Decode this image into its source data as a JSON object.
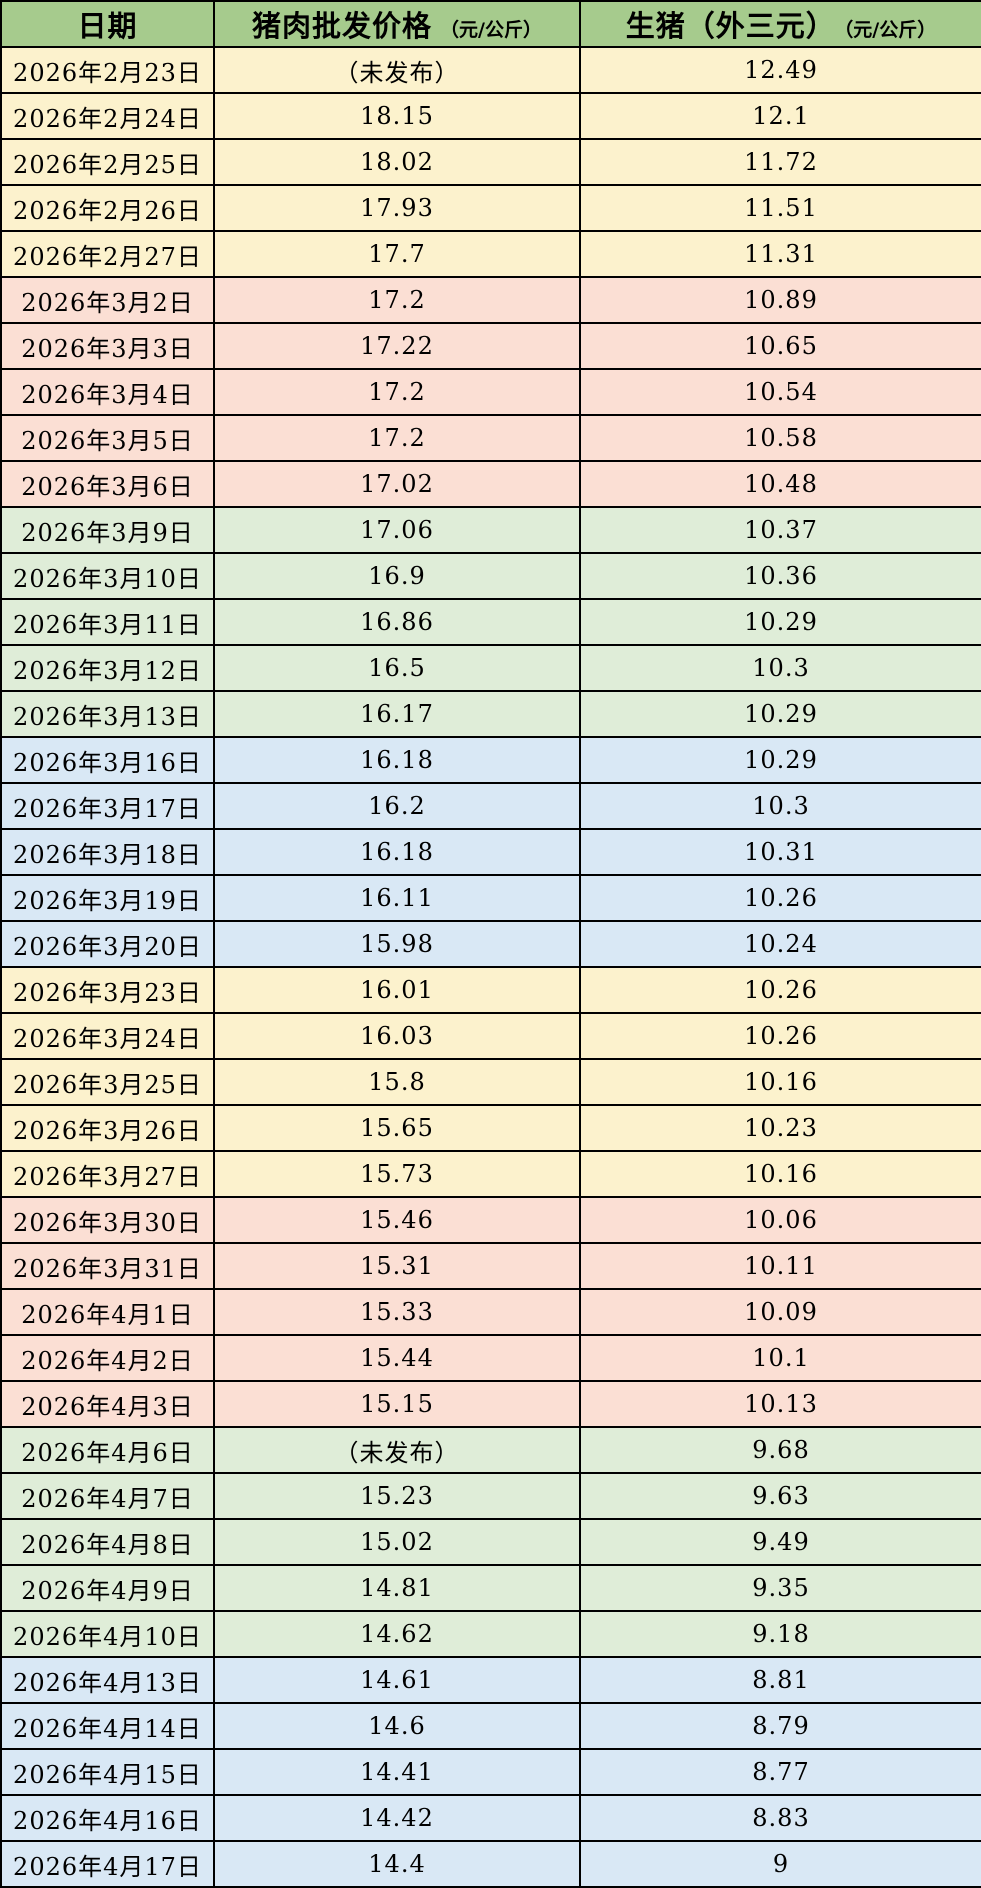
{
  "table": {
    "header": {
      "date_label": "日期",
      "pork_label": "猪肉批发价格",
      "pork_unit": "（元/公斤）",
      "hog_label": "生猪（外三元）",
      "hog_unit": "（元/公斤）"
    },
    "rows": [
      {
        "date": "2026年2月23日",
        "pork": "（未发布）",
        "hog": "12.49",
        "band": "yellow"
      },
      {
        "date": "2026年2月24日",
        "pork": "18.15",
        "hog": "12.1",
        "band": "yellow"
      },
      {
        "date": "2026年2月25日",
        "pork": "18.02",
        "hog": "11.72",
        "band": "yellow"
      },
      {
        "date": "2026年2月26日",
        "pork": "17.93",
        "hog": "11.51",
        "band": "yellow"
      },
      {
        "date": "2026年2月27日",
        "pork": "17.7",
        "hog": "11.31",
        "band": "yellow"
      },
      {
        "date": "2026年3月2日",
        "pork": "17.2",
        "hog": "10.89",
        "band": "pink"
      },
      {
        "date": "2026年3月3日",
        "pork": "17.22",
        "hog": "10.65",
        "band": "pink"
      },
      {
        "date": "2026年3月4日",
        "pork": "17.2",
        "hog": "10.54",
        "band": "pink"
      },
      {
        "date": "2026年3月5日",
        "pork": "17.2",
        "hog": "10.58",
        "band": "pink"
      },
      {
        "date": "2026年3月6日",
        "pork": "17.02",
        "hog": "10.48",
        "band": "pink"
      },
      {
        "date": "2026年3月9日",
        "pork": "17.06",
        "hog": "10.37",
        "band": "green"
      },
      {
        "date": "2026年3月10日",
        "pork": "16.9",
        "hog": "10.36",
        "band": "green"
      },
      {
        "date": "2026年3月11日",
        "pork": "16.86",
        "hog": "10.29",
        "band": "green"
      },
      {
        "date": "2026年3月12日",
        "pork": "16.5",
        "hog": "10.3",
        "band": "green"
      },
      {
        "date": "2026年3月13日",
        "pork": "16.17",
        "hog": "10.29",
        "band": "green"
      },
      {
        "date": "2026年3月16日",
        "pork": "16.18",
        "hog": "10.29",
        "band": "blue"
      },
      {
        "date": "2026年3月17日",
        "pork": "16.2",
        "hog": "10.3",
        "band": "blue"
      },
      {
        "date": "2026年3月18日",
        "pork": "16.18",
        "hog": "10.31",
        "band": "blue"
      },
      {
        "date": "2026年3月19日",
        "pork": "16.11",
        "hog": "10.26",
        "band": "blue"
      },
      {
        "date": "2026年3月20日",
        "pork": "15.98",
        "hog": "10.24",
        "band": "blue"
      },
      {
        "date": "2026年3月23日",
        "pork": "16.01",
        "hog": "10.26",
        "band": "yellow"
      },
      {
        "date": "2026年3月24日",
        "pork": "16.03",
        "hog": "10.26",
        "band": "yellow"
      },
      {
        "date": "2026年3月25日",
        "pork": "15.8",
        "hog": "10.16",
        "band": "yellow"
      },
      {
        "date": "2026年3月26日",
        "pork": "15.65",
        "hog": "10.23",
        "band": "yellow"
      },
      {
        "date": "2026年3月27日",
        "pork": "15.73",
        "hog": "10.16",
        "band": "yellow"
      },
      {
        "date": "2026年3月30日",
        "pork": "15.46",
        "hog": "10.06",
        "band": "pink"
      },
      {
        "date": "2026年3月31日",
        "pork": "15.31",
        "hog": "10.11",
        "band": "pink"
      },
      {
        "date": "2026年4月1日",
        "pork": "15.33",
        "hog": "10.09",
        "band": "pink"
      },
      {
        "date": "2026年4月2日",
        "pork": "15.44",
        "hog": "10.1",
        "band": "pink"
      },
      {
        "date": "2026年4月3日",
        "pork": "15.15",
        "hog": "10.13",
        "band": "pink"
      },
      {
        "date": "2026年4月6日",
        "pork": "（未发布）",
        "hog": "9.68",
        "band": "green"
      },
      {
        "date": "2026年4月7日",
        "pork": "15.23",
        "hog": "9.63",
        "band": "green"
      },
      {
        "date": "2026年4月8日",
        "pork": "15.02",
        "hog": "9.49",
        "band": "green"
      },
      {
        "date": "2026年4月9日",
        "pork": "14.81",
        "hog": "9.35",
        "band": "green"
      },
      {
        "date": "2026年4月10日",
        "pork": "14.62",
        "hog": "9.18",
        "band": "green"
      },
      {
        "date": "2026年4月13日",
        "pork": "14.61",
        "hog": "8.81",
        "band": "blue"
      },
      {
        "date": "2026年4月14日",
        "pork": "14.6",
        "hog": "8.79",
        "band": "blue"
      },
      {
        "date": "2026年4月15日",
        "pork": "14.41",
        "hog": "8.77",
        "band": "blue"
      },
      {
        "date": "2026年4月16日",
        "pork": "14.42",
        "hog": "8.83",
        "band": "blue"
      },
      {
        "date": "2026年4月17日",
        "pork": "14.4",
        "hog": "9",
        "band": "blue"
      }
    ]
  },
  "colors": {
    "header_bg": "#A6CB8D",
    "yellow": "#FCF2CD",
    "pink": "#FBDFD4",
    "green": "#DFEDD8",
    "blue": "#D9E8F5",
    "border": "#000000",
    "text": "#000000"
  },
  "chart_data": {
    "type": "table",
    "title": "",
    "columns": [
      "日期",
      "猪肉批发价格（元/公斤）",
      "生猪（外三元）（元/公斤）"
    ],
    "rows": [
      [
        "2026年2月23日",
        "（未发布）",
        "12.49"
      ],
      [
        "2026年2月24日",
        "18.15",
        "12.1"
      ],
      [
        "2026年2月25日",
        "18.02",
        "11.72"
      ],
      [
        "2026年2月26日",
        "17.93",
        "11.51"
      ],
      [
        "2026年2月27日",
        "17.7",
        "11.31"
      ],
      [
        "2026年3月2日",
        "17.2",
        "10.89"
      ],
      [
        "2026年3月3日",
        "17.22",
        "10.65"
      ],
      [
        "2026年3月4日",
        "17.2",
        "10.54"
      ],
      [
        "2026年3月5日",
        "17.2",
        "10.58"
      ],
      [
        "2026年3月6日",
        "17.02",
        "10.48"
      ],
      [
        "2026年3月9日",
        "17.06",
        "10.37"
      ],
      [
        "2026年3月10日",
        "16.9",
        "10.36"
      ],
      [
        "2026年3月11日",
        "16.86",
        "10.29"
      ],
      [
        "2026年3月12日",
        "16.5",
        "10.3"
      ],
      [
        "2026年3月13日",
        "16.17",
        "10.29"
      ],
      [
        "2026年3月16日",
        "16.18",
        "10.29"
      ],
      [
        "2026年3月17日",
        "16.2",
        "10.3"
      ],
      [
        "2026年3月18日",
        "16.18",
        "10.31"
      ],
      [
        "2026年3月19日",
        "16.11",
        "10.26"
      ],
      [
        "2026年3月20日",
        "15.98",
        "10.24"
      ],
      [
        "2026年3月23日",
        "16.01",
        "10.26"
      ],
      [
        "2026年3月24日",
        "16.03",
        "10.26"
      ],
      [
        "2026年3月25日",
        "15.8",
        "10.16"
      ],
      [
        "2026年3月26日",
        "15.65",
        "10.23"
      ],
      [
        "2026年3月27日",
        "15.73",
        "10.16"
      ],
      [
        "2026年3月30日",
        "15.46",
        "10.06"
      ],
      [
        "2026年3月31日",
        "15.31",
        "10.11"
      ],
      [
        "2026年4月1日",
        "15.33",
        "10.09"
      ],
      [
        "2026年4月2日",
        "15.44",
        "10.1"
      ],
      [
        "2026年4月3日",
        "15.15",
        "10.13"
      ],
      [
        "2026年4月6日",
        "（未发布）",
        "9.68"
      ],
      [
        "2026年4月7日",
        "15.23",
        "9.63"
      ],
      [
        "2026年4月8日",
        "15.02",
        "9.49"
      ],
      [
        "2026年4月9日",
        "14.81",
        "9.35"
      ],
      [
        "2026年4月10日",
        "14.62",
        "9.18"
      ],
      [
        "2026年4月13日",
        "14.61",
        "8.81"
      ],
      [
        "2026年4月14日",
        "14.6",
        "8.79"
      ],
      [
        "2026年4月15日",
        "14.41",
        "8.77"
      ],
      [
        "2026年4月16日",
        "14.42",
        "8.83"
      ],
      [
        "2026年4月17日",
        "14.4",
        "9"
      ]
    ]
  }
}
